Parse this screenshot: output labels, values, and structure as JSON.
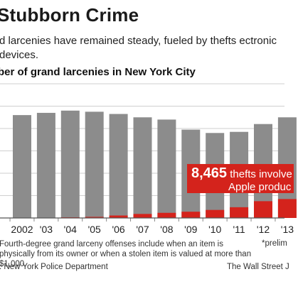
{
  "header": {
    "title": "Stubborn Crime",
    "subtitle": "d larcenies have remained steady, fueled by thefts ectronic devices."
  },
  "chart_header": "ber of grand larcenies in New York City",
  "callout": {
    "value": "8,465",
    "line1": "thefts involve",
    "line2": "Apple produc"
  },
  "footnote": "Fourth-degree grand larceny offenses include when an item is physically from its owner or when a stolen item is valued at more than $1,000.",
  "prelim_note": "*prelim",
  "source": ": New York Police Department",
  "credit": "The Wall Street J",
  "colors": {
    "bar": "#8c8c8c",
    "apple": "#d4231c",
    "axis": "#888888",
    "grid": "#cfcfcf"
  },
  "chart_data": {
    "type": "bar",
    "title": "ber of grand larcenies in New York City",
    "categories": [
      "2002",
      "'03",
      "'04",
      "'05",
      "'06",
      "'07",
      "'08",
      "'09",
      "'10",
      "'11",
      "'12",
      "'13"
    ],
    "series": [
      {
        "name": "",
        "values": [
          46000,
          47000,
          48000,
          47500,
          46500,
          45000,
          44000,
          39500,
          38000,
          38500,
          42000,
          45000
        ]
      },
      {
        "name": "",
        "values": [
          0,
          0,
          300,
          500,
          1100,
          1800,
          2300,
          2800,
          3600,
          4800,
          7500,
          8465
        ]
      }
    ],
    "y_gridlines": [
      10000,
      20000,
      30000,
      40000,
      50000,
      60000
    ],
    "ylim": [
      0,
      60000
    ],
    "xlabel": "",
    "ylabel": "",
    "grid": true
  }
}
